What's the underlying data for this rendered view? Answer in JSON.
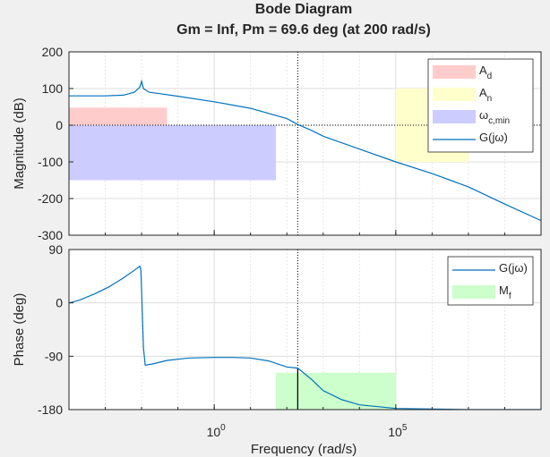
{
  "title": "Bode Diagram",
  "subtitle": "Gm = Inf,  Pm = 69.6 deg (at 200 rad/s)",
  "xlabel": "Frequency  (rad/s)",
  "colors": {
    "background": "#f0f0f0",
    "axes_bg": "#ffffff",
    "line": "#0072bd",
    "A_d": "#ffcccc",
    "A_n": "#ffffcc",
    "omega_c_min": "#ccccff",
    "M_f": "#ccffcc"
  },
  "chart_data": [
    {
      "type": "line",
      "title": "Magnitude",
      "ylabel": "Magnitude (dB)",
      "xscale": "log",
      "xlim_log10": [
        -4,
        9
      ],
      "ylim": [
        -300,
        200
      ],
      "yticks": [
        200,
        100,
        0,
        -100,
        -200,
        -300
      ],
      "xticks_log10": [
        0,
        5
      ],
      "grid": true,
      "legend_location": "top-right",
      "legend": [
        {
          "key": "A",
          "sub": "d",
          "kind": "patch",
          "color": "#ffcccc"
        },
        {
          "key": "A",
          "sub": "n",
          "kind": "patch",
          "color": "#ffffcc"
        },
        {
          "key": "ω",
          "sub": "c,min",
          "kind": "patch",
          "color": "#ccccff"
        },
        {
          "key": "G(jω)",
          "sub": "",
          "kind": "line",
          "color": "#0072bd"
        }
      ],
      "regions": [
        {
          "name": "A_d",
          "x_log10": [
            -4,
            -1.3
          ],
          "y": [
            0,
            48
          ],
          "color": "#ffcccc"
        },
        {
          "name": "A_n",
          "x_log10": [
            5,
            7
          ],
          "y": [
            -100,
            100
          ],
          "color": "#ffffcc"
        },
        {
          "name": "omega_c_min",
          "x_log10": [
            -4,
            1.7
          ],
          "y": [
            -150,
            0
          ],
          "color": "#ccccff"
        }
      ],
      "series": [
        {
          "name": "G(jω)",
          "x_log10": [
            -4,
            -3.5,
            -3,
            -2.5,
            -2.2,
            -2.05,
            -2,
            -1.95,
            -1.8,
            -1.5,
            -1,
            0,
            1,
            2,
            2.3,
            2.7,
            3,
            4,
            5,
            6,
            7,
            8,
            9
          ],
          "y": [
            80,
            80,
            80,
            82,
            90,
            104,
            120,
            100,
            90,
            86,
            79,
            64,
            46,
            18,
            2,
            -15,
            -30,
            -65,
            -100,
            -132,
            -168,
            -215,
            -260
          ]
        }
      ],
      "reference_lines": [
        {
          "axis": "y",
          "value": 0,
          "style": "dotted"
        },
        {
          "axis": "x",
          "value_log10": 2.3,
          "style": "dotted",
          "label": "200 rad/s"
        }
      ]
    },
    {
      "type": "line",
      "title": "Phase",
      "ylabel": "Phase (deg)",
      "xscale": "log",
      "xlim_log10": [
        -4,
        9
      ],
      "ylim": [
        -180,
        90
      ],
      "yticks": [
        90,
        0,
        -90,
        -180
      ],
      "xticks_log10": [
        0,
        5
      ],
      "grid": true,
      "legend_location": "top-right",
      "legend": [
        {
          "key": "G(jω)",
          "sub": "",
          "kind": "line",
          "color": "#0072bd"
        },
        {
          "key": "M",
          "sub": "f",
          "kind": "patch",
          "color": "#ccffcc"
        }
      ],
      "regions": [
        {
          "name": "M_f",
          "x_log10": [
            1.7,
            5
          ],
          "y": [
            -180,
            -118
          ],
          "color": "#ccffcc"
        }
      ],
      "series": [
        {
          "name": "G(jω)",
          "x_log10": [
            -4,
            -3.7,
            -3.3,
            -2.9,
            -2.5,
            -2.2,
            -2.05,
            -2.02,
            -2.0,
            -1.95,
            -1.9,
            -1.7,
            -1.3,
            -0.7,
            0,
            0.5,
            1,
            1.5,
            2,
            2.3,
            2.7,
            3,
            3.5,
            4,
            5,
            6,
            7,
            8,
            9
          ],
          "y": [
            0,
            5,
            15,
            27,
            42,
            55,
            62,
            55,
            20,
            -75,
            -105,
            -103,
            -97,
            -93,
            -92,
            -92,
            -93,
            -98,
            -108,
            -110,
            -130,
            -148,
            -163,
            -172,
            -178,
            -179,
            -180,
            -180,
            -180
          ]
        }
      ],
      "reference_lines": [
        {
          "axis": "y",
          "value": -180,
          "style": "dotted"
        },
        {
          "axis": "x",
          "value_log10": 2.3,
          "style": "dotted",
          "label": "200 rad/s"
        },
        {
          "axis": "segment",
          "x_log10": 2.3,
          "y": [
            -180,
            -110
          ],
          "style": "solid",
          "label": "phase margin 69.6 deg"
        }
      ]
    }
  ]
}
